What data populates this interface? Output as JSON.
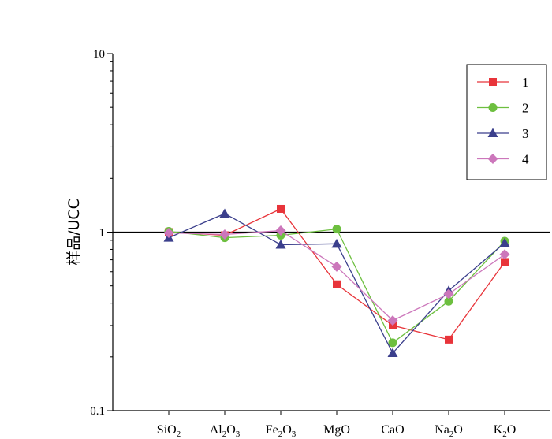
{
  "chart_data": {
    "type": "line",
    "title": "",
    "xlabel": "",
    "ylabel": "样品/UCC",
    "yscale": "log",
    "ylim": [
      0.1,
      10
    ],
    "yticks": [
      {
        "value": 0.1,
        "label": "0.1"
      },
      {
        "value": 1,
        "label": "1"
      },
      {
        "value": 10,
        "label": "10"
      }
    ],
    "reference_line": 1,
    "categories": [
      {
        "base": "SiO",
        "sub": "2",
        "rest": ""
      },
      {
        "base": "Al",
        "sub": "2",
        "rest": "O",
        "sub2": "3"
      },
      {
        "base": "Fe",
        "sub": "2",
        "rest": "O",
        "sub2": "3"
      },
      {
        "base": "MgO",
        "sub": "",
        "rest": ""
      },
      {
        "base": "CaO",
        "sub": "",
        "rest": ""
      },
      {
        "base": "Na",
        "sub": "2",
        "rest": "O"
      },
      {
        "base": "K",
        "sub": "2",
        "rest": "O"
      }
    ],
    "legend_position": "top-right",
    "series": [
      {
        "name": "1",
        "color": "#e8343a",
        "marker": "square",
        "values": [
          1.0,
          0.96,
          1.35,
          0.51,
          0.3,
          0.25,
          0.68
        ]
      },
      {
        "name": "2",
        "color": "#6dbf3f",
        "marker": "circle",
        "values": [
          1.01,
          0.93,
          0.96,
          1.04,
          0.24,
          0.41,
          0.89
        ]
      },
      {
        "name": "3",
        "color": "#3b3f8c",
        "marker": "triangle",
        "values": [
          0.93,
          1.27,
          0.85,
          0.86,
          0.21,
          0.47,
          0.87
        ]
      },
      {
        "name": "4",
        "color": "#cc77bb",
        "marker": "diamond",
        "values": [
          0.99,
          0.97,
          1.02,
          0.64,
          0.32,
          0.45,
          0.75
        ]
      }
    ]
  }
}
